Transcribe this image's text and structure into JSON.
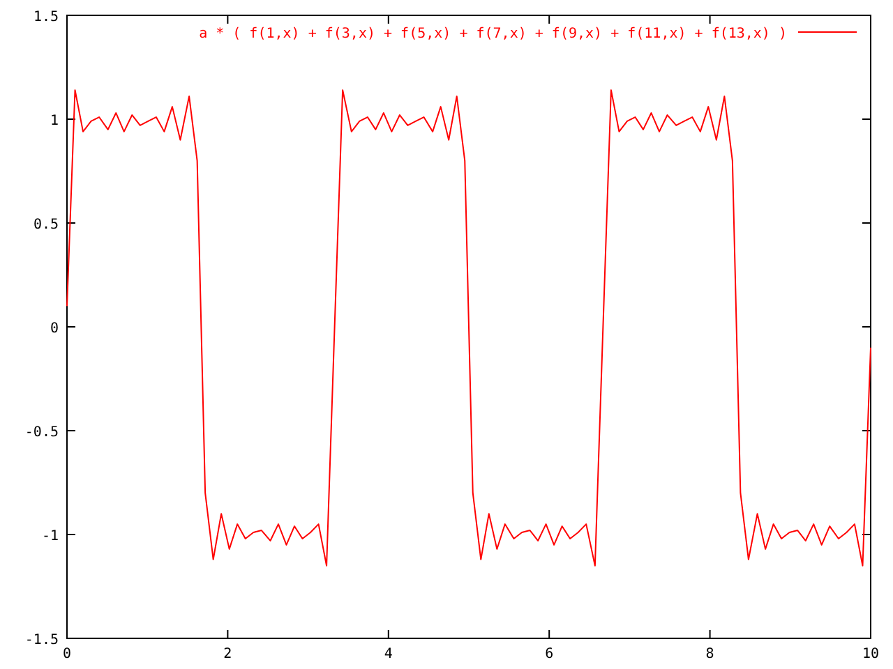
{
  "chart_data": {
    "type": "line",
    "xlim": [
      0,
      10
    ],
    "ylim": [
      -1.5,
      1.5
    ],
    "xticks": [
      0,
      2,
      4,
      6,
      8,
      10
    ],
    "yticks": [
      -1.5,
      -1,
      -0.5,
      0,
      0.5,
      1,
      1.5
    ],
    "grid": false,
    "legend": "top right",
    "marker": "none",
    "line_style": "solid",
    "series": [
      {
        "name": "a * ( f(1,x) + f(3,x) + f(5,x) + f(7,x) + f(9,x) + f(11,x) + f(13,x) )",
        "color": "#ff0000",
        "x": [
          0,
          0.1,
          0.2,
          0.3,
          0.4,
          0.51,
          0.61,
          0.71,
          0.81,
          0.91,
          1.01,
          1.11,
          1.21,
          1.31,
          1.41,
          1.52,
          1.62,
          1.72,
          1.82,
          1.92,
          2.02,
          2.12,
          2.22,
          2.32,
          2.42,
          2.53,
          2.63,
          2.73,
          2.83,
          2.93,
          3.03,
          3.13,
          3.23,
          3.33,
          3.43,
          3.54,
          3.64,
          3.74,
          3.84,
          3.94,
          4.04,
          4.14,
          4.24,
          4.34,
          4.44,
          4.55,
          4.65,
          4.75,
          4.85,
          4.95,
          5.05,
          5.15,
          5.25,
          5.35,
          5.45,
          5.56,
          5.66,
          5.76,
          5.86,
          5.96,
          6.06,
          6.16,
          6.26,
          6.36,
          6.46,
          6.57,
          6.67,
          6.77,
          6.87,
          6.97,
          7.07,
          7.17,
          7.27,
          7.37,
          7.47,
          7.58,
          7.68,
          7.78,
          7.88,
          7.98,
          8.08,
          8.18,
          8.28,
          8.38,
          8.48,
          8.59,
          8.69,
          8.79,
          8.89,
          8.99,
          9.09,
          9.19,
          9.29,
          9.39,
          9.49,
          9.6,
          9.7,
          9.8,
          9.9,
          10
        ],
        "values": [
          0.1,
          1.14,
          0.94,
          0.99,
          1.01,
          0.95,
          1.03,
          0.94,
          1.02,
          0.97,
          0.99,
          1.01,
          0.94,
          1.06,
          0.9,
          1.11,
          0.8,
          -0.8,
          -1.12,
          -0.9,
          -1.07,
          -0.95,
          -1.02,
          -0.99,
          -0.98,
          -1.03,
          -0.95,
          -1.05,
          -0.96,
          -1.02,
          -0.99,
          -0.95,
          -1.15,
          0,
          1.14,
          0.94,
          0.99,
          1.01,
          0.95,
          1.03,
          0.94,
          1.02,
          0.97,
          0.99,
          1.01,
          0.94,
          1.06,
          0.9,
          1.11,
          0.8,
          -0.8,
          -1.12,
          -0.9,
          -1.07,
          -0.95,
          -1.02,
          -0.99,
          -0.98,
          -1.03,
          -0.95,
          -1.05,
          -0.96,
          -1.02,
          -0.99,
          -0.95,
          -1.15,
          0,
          1.14,
          0.94,
          0.99,
          1.01,
          0.95,
          1.03,
          0.94,
          1.02,
          0.97,
          0.99,
          1.01,
          0.94,
          1.06,
          0.9,
          1.11,
          0.8,
          -0.8,
          -1.12,
          -0.9,
          -1.07,
          -0.95,
          -1.02,
          -0.99,
          -0.98,
          -1.03,
          -0.95,
          -1.05,
          -0.96,
          -1.02,
          -0.99,
          -0.95,
          -1.15,
          -0.1
        ]
      }
    ]
  }
}
